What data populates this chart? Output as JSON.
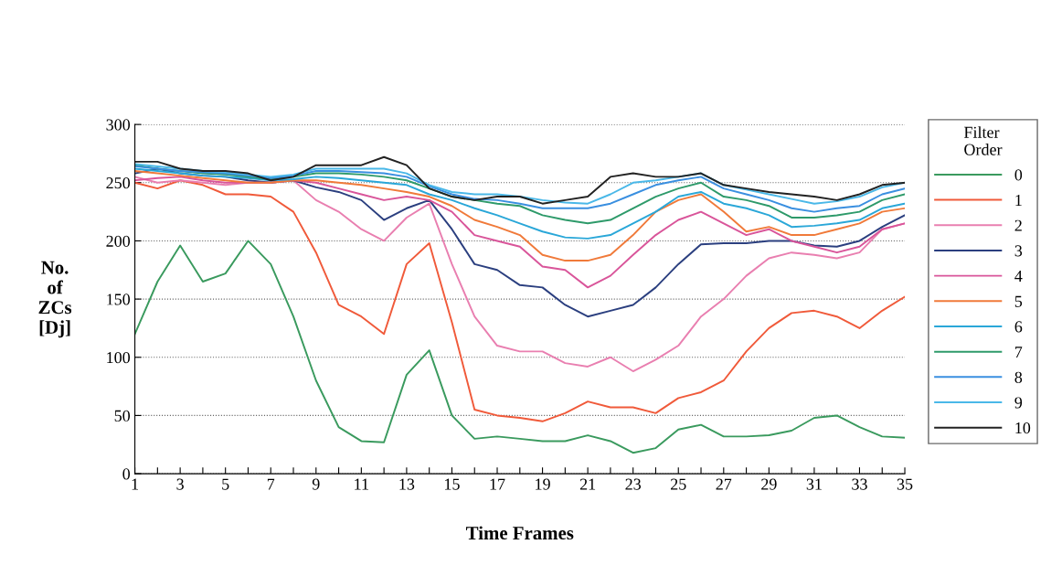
{
  "chart_data": {
    "type": "line",
    "xlabel": "Time Frames",
    "ylabel": "No.\nof\nZCs\n[Dj]",
    "legend_title": "Filter\nOrder",
    "legend": "right",
    "x": [
      1,
      2,
      3,
      4,
      5,
      6,
      7,
      8,
      9,
      10,
      11,
      12,
      13,
      14,
      15,
      16,
      17,
      18,
      19,
      20,
      21,
      22,
      23,
      24,
      25,
      26,
      27,
      28,
      29,
      30,
      31,
      32,
      33,
      34,
      35
    ],
    "xlim": [
      1,
      35
    ],
    "xticks": [
      1,
      {
        "value": 2,
        "label": null
      },
      3,
      {
        "value": 4,
        "label": null
      },
      5,
      {
        "value": 6,
        "label": null
      },
      7,
      {
        "value": 8,
        "label": null
      },
      9,
      {
        "value": 10,
        "label": null
      },
      11,
      {
        "value": 12,
        "label": null
      },
      13,
      {
        "value": 14,
        "label": null
      },
      15,
      {
        "value": 16,
        "label": null
      },
      17,
      {
        "value": 18,
        "label": null
      },
      19,
      {
        "value": 20,
        "label": null
      },
      21,
      {
        "value": 22,
        "label": null
      },
      23,
      {
        "value": 24,
        "label": null
      },
      25,
      {
        "value": 26,
        "label": null
      },
      27,
      {
        "value": 28,
        "label": null
      },
      29,
      {
        "value": 30,
        "label": null
      },
      31,
      {
        "value": 32,
        "label": null
      },
      33,
      {
        "value": 34,
        "label": null
      },
      35
    ],
    "ylim": [
      0,
      300
    ],
    "yticks": [
      0,
      50,
      100,
      150,
      200,
      250,
      300
    ],
    "grid": "y",
    "series": [
      {
        "name": "0",
        "color": "#3a9a5e",
        "values": [
          120,
          165,
          196,
          165,
          172,
          200,
          180,
          135,
          80,
          40,
          28,
          27,
          85,
          106,
          50,
          30,
          32,
          30,
          28,
          28,
          33,
          28,
          18,
          22,
          38,
          42,
          32,
          32,
          33,
          37,
          48,
          50,
          40,
          32,
          31
        ]
      },
      {
        "name": "1",
        "color": "#f05a3a",
        "values": [
          250,
          245,
          252,
          248,
          240,
          240,
          238,
          225,
          190,
          145,
          135,
          120,
          180,
          198,
          130,
          55,
          50,
          48,
          45,
          52,
          62,
          57,
          57,
          52,
          65,
          70,
          80,
          105,
          125,
          138,
          140,
          135,
          125,
          140,
          152
        ]
      },
      {
        "name": "2",
        "color": "#e97fb0",
        "values": [
          255,
          250,
          252,
          250,
          248,
          250,
          250,
          252,
          235,
          225,
          210,
          200,
          220,
          232,
          180,
          135,
          110,
          105,
          105,
          95,
          92,
          100,
          88,
          98,
          110,
          135,
          150,
          170,
          185,
          190,
          188,
          185,
          190,
          210,
          215
        ]
      },
      {
        "name": "3",
        "color": "#2b3f7f",
        "values": [
          258,
          262,
          258,
          256,
          255,
          252,
          250,
          252,
          246,
          242,
          235,
          218,
          228,
          235,
          210,
          180,
          175,
          162,
          160,
          145,
          135,
          140,
          145,
          160,
          180,
          197,
          198,
          198,
          200,
          200,
          196,
          195,
          200,
          212,
          222
        ]
      },
      {
        "name": "4",
        "color": "#d9559a",
        "values": [
          252,
          254,
          255,
          252,
          250,
          250,
          250,
          252,
          250,
          245,
          240,
          235,
          238,
          235,
          225,
          205,
          200,
          195,
          178,
          175,
          160,
          170,
          188,
          205,
          218,
          225,
          215,
          205,
          210,
          200,
          195,
          190,
          195,
          210,
          215
        ]
      },
      {
        "name": "5",
        "color": "#f07a3a",
        "values": [
          260,
          258,
          256,
          254,
          252,
          250,
          250,
          252,
          252,
          250,
          248,
          245,
          242,
          238,
          230,
          218,
          212,
          205,
          188,
          183,
          183,
          188,
          205,
          225,
          235,
          240,
          225,
          208,
          212,
          205,
          205,
          210,
          215,
          225,
          228
        ]
      },
      {
        "name": "6",
        "color": "#2aa7d8",
        "values": [
          262,
          260,
          258,
          256,
          255,
          254,
          252,
          253,
          255,
          254,
          252,
          250,
          248,
          240,
          235,
          228,
          222,
          215,
          208,
          203,
          202,
          205,
          215,
          225,
          238,
          242,
          232,
          228,
          222,
          212,
          213,
          215,
          218,
          228,
          232
        ]
      },
      {
        "name": "7",
        "color": "#2e9a6a",
        "values": [
          265,
          262,
          260,
          258,
          257,
          255,
          253,
          255,
          258,
          258,
          257,
          255,
          252,
          245,
          238,
          235,
          232,
          230,
          222,
          218,
          215,
          218,
          228,
          238,
          245,
          250,
          238,
          235,
          230,
          220,
          220,
          222,
          225,
          235,
          240
        ]
      },
      {
        "name": "8",
        "color": "#3a8fe0",
        "values": [
          264,
          262,
          260,
          259,
          258,
          256,
          254,
          256,
          260,
          260,
          259,
          258,
          255,
          247,
          240,
          236,
          235,
          232,
          228,
          228,
          228,
          232,
          240,
          248,
          252,
          255,
          245,
          240,
          235,
          228,
          225,
          228,
          230,
          240,
          245
        ]
      },
      {
        "name": "9",
        "color": "#4ab8e8",
        "values": [
          266,
          264,
          262,
          260,
          259,
          257,
          255,
          257,
          262,
          262,
          262,
          262,
          258,
          248,
          242,
          240,
          240,
          238,
          235,
          233,
          232,
          240,
          250,
          252,
          255,
          258,
          248,
          244,
          240,
          236,
          232,
          234,
          238,
          246,
          250
        ]
      },
      {
        "name": "10",
        "color": "#222222",
        "values": [
          268,
          268,
          262,
          260,
          260,
          258,
          252,
          255,
          265,
          265,
          265,
          272,
          265,
          245,
          238,
          235,
          238,
          238,
          232,
          235,
          238,
          255,
          258,
          255,
          255,
          258,
          248,
          245,
          242,
          240,
          238,
          235,
          240,
          248,
          250
        ]
      }
    ]
  }
}
